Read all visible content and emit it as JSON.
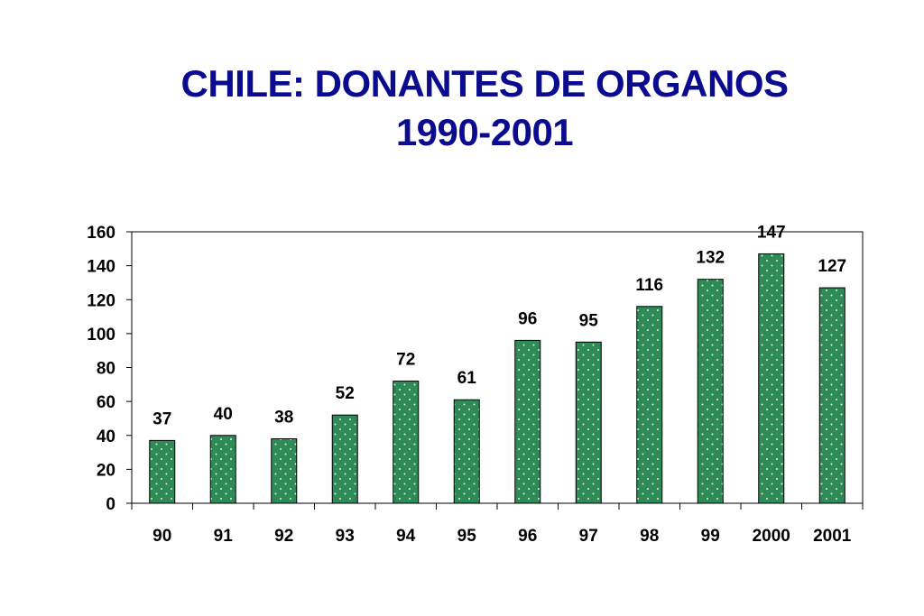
{
  "chart_data": {
    "type": "bar",
    "title": "CHILE: DONANTES DE ORGANOS",
    "subtitle": "1990-2001",
    "categories": [
      "90",
      "91",
      "92",
      "93",
      "94",
      "95",
      "96",
      "97",
      "98",
      "99",
      "2000",
      "2001"
    ],
    "values": [
      37,
      40,
      38,
      52,
      72,
      61,
      96,
      95,
      116,
      132,
      147,
      127
    ],
    "ylim": [
      0,
      160
    ],
    "yticks": [
      "0",
      "20",
      "40",
      "60",
      "80",
      "100",
      "120",
      "140",
      "160"
    ],
    "grid": false,
    "data_labels": true,
    "bar_color": "#2e8b57",
    "bar_pattern": "dotted"
  }
}
